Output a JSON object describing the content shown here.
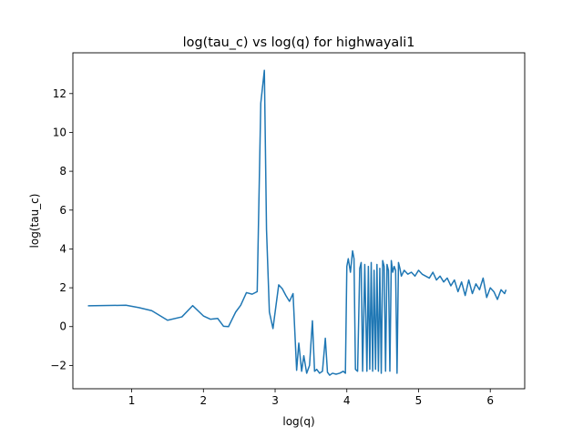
{
  "chart_data": {
    "type": "line",
    "title": "log(tau_c) vs log(q) for highwayali1",
    "xlabel": "log(q)",
    "ylabel": "log(tau_c)",
    "xlim": [
      0.18,
      6.48
    ],
    "ylim": [
      -3.2,
      14.1
    ],
    "xticks": [
      1,
      2,
      3,
      4,
      5,
      6
    ],
    "yticks": [
      -2,
      0,
      2,
      4,
      6,
      8,
      10,
      12
    ],
    "grid": false,
    "line_color": "#1f77b4",
    "series": [
      {
        "x": [
          0.39,
          0.92,
          1.1,
          1.28,
          1.5,
          1.7,
          1.85,
          2.0,
          2.1,
          2.2,
          2.28,
          2.35,
          2.45,
          2.52,
          2.6,
          2.68,
          2.75,
          2.8,
          2.85,
          2.88,
          2.92,
          2.97,
          3.05,
          3.1,
          3.15,
          3.2,
          3.25,
          3.3,
          3.33,
          3.37,
          3.4,
          3.44,
          3.48,
          3.52,
          3.55,
          3.58,
          3.62,
          3.66,
          3.7,
          3.73,
          3.76,
          3.8,
          3.85,
          3.9,
          3.95,
          3.98,
          4.0,
          4.02,
          4.05,
          4.08,
          4.1,
          4.12,
          4.15,
          4.18,
          4.2,
          4.22,
          4.25,
          4.28,
          4.3,
          4.32,
          4.34,
          4.36,
          4.38,
          4.4,
          4.42,
          4.44,
          4.46,
          4.48,
          4.5,
          4.52,
          4.54,
          4.56,
          4.58,
          4.6,
          4.62,
          4.64,
          4.66,
          4.68,
          4.7,
          4.72,
          4.74,
          4.76,
          4.8,
          4.85,
          4.9,
          4.95,
          5.0,
          5.05,
          5.1,
          5.15,
          5.2,
          5.25,
          5.3,
          5.35,
          5.4,
          5.45,
          5.5,
          5.55,
          5.6,
          5.65,
          5.7,
          5.75,
          5.8,
          5.85,
          5.9,
          5.95,
          6.0,
          6.05,
          6.1,
          6.15,
          6.2,
          6.22
        ],
        "y": [
          1.07,
          1.1,
          0.98,
          0.82,
          0.33,
          0.5,
          1.08,
          0.55,
          0.38,
          0.42,
          0.02,
          0.0,
          0.75,
          1.1,
          1.75,
          1.67,
          1.8,
          11.5,
          13.2,
          5.0,
          0.75,
          -0.1,
          2.15,
          1.95,
          1.6,
          1.3,
          1.7,
          -2.25,
          -0.85,
          -2.3,
          -1.5,
          -2.4,
          -2.0,
          0.3,
          -2.3,
          -2.2,
          -2.4,
          -2.3,
          -0.6,
          -2.35,
          -2.5,
          -2.4,
          -2.45,
          -2.4,
          -2.3,
          -2.4,
          3.1,
          3.5,
          2.8,
          3.9,
          3.5,
          -2.2,
          -2.3,
          3.0,
          3.3,
          -2.3,
          3.2,
          -2.3,
          3.1,
          -2.2,
          3.3,
          -2.3,
          2.9,
          -2.2,
          3.2,
          -2.3,
          3.0,
          -2.4,
          3.4,
          3.1,
          -2.3,
          3.2,
          2.9,
          -2.3,
          3.4,
          2.8,
          3.1,
          2.9,
          -2.4,
          3.3,
          3.0,
          2.6,
          2.9,
          2.7,
          2.8,
          2.6,
          2.9,
          2.7,
          2.6,
          2.5,
          2.8,
          2.4,
          2.6,
          2.3,
          2.5,
          2.1,
          2.4,
          1.8,
          2.3,
          1.6,
          2.4,
          1.7,
          2.2,
          1.9,
          2.5,
          1.5,
          2.0,
          1.8,
          1.4,
          1.9,
          1.7,
          1.9
        ]
      }
    ]
  }
}
